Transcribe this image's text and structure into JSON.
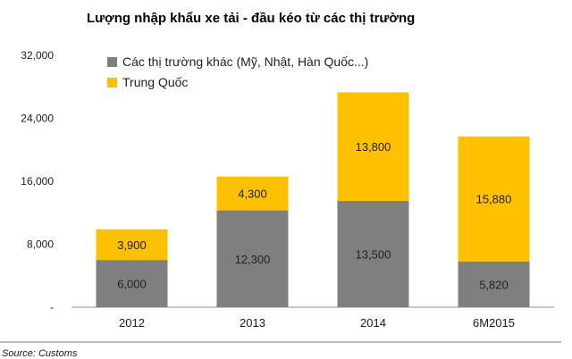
{
  "chart_data": {
    "type": "bar",
    "stacked": true,
    "title": "Lượng nhập khẩu xe tải - đầu kéo từ các thị trường",
    "categories": [
      "2012",
      "2013",
      "2014",
      "6M2015"
    ],
    "series": [
      {
        "name": "Các thị trường khác (Mỹ, Nhật, Hàn Quốc...)",
        "values": [
          6000,
          12300,
          13500,
          5820
        ],
        "labels": [
          "6,000",
          "12,300",
          "13,500",
          "5,820"
        ],
        "color": "#7f7f7f"
      },
      {
        "name": "Trung Quốc",
        "values": [
          3900,
          4300,
          13800,
          15880
        ],
        "labels": [
          "3,900",
          "4,300",
          "13,800",
          "15,880"
        ],
        "color": "#ffc000"
      }
    ],
    "ylim": [
      0,
      32000
    ],
    "yticks": [
      0,
      8000,
      16000,
      24000,
      32000
    ],
    "ytick_labels": [
      "-",
      "8,000",
      "16,000",
      "24,000",
      "32,000"
    ],
    "legend_position": "top-left",
    "grid": false,
    "xlabel": "",
    "ylabel": ""
  },
  "source_note": "Source: Customs"
}
